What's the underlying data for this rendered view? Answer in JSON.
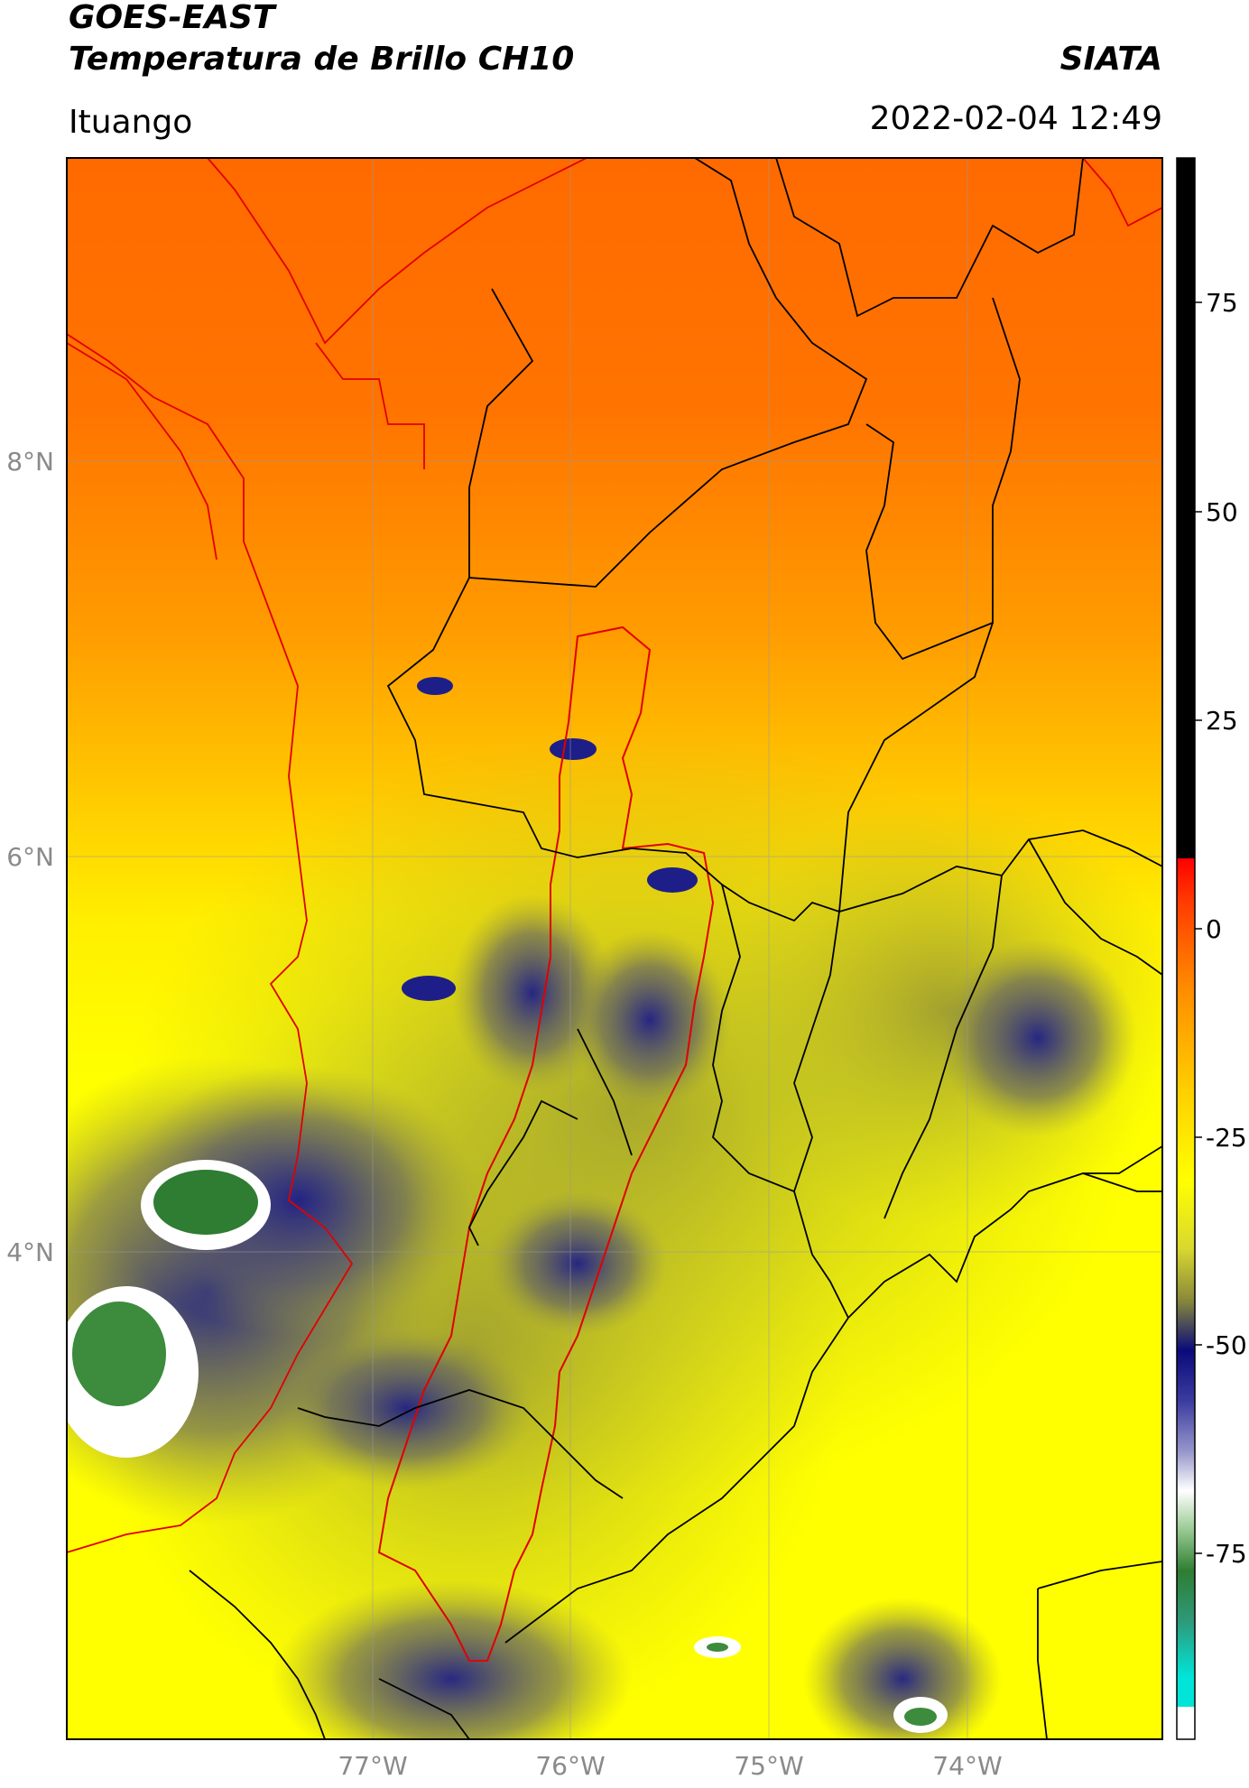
{
  "header": {
    "title_line1": "GOES-EAST",
    "title_line2": "Temperatura de Brillo CH10",
    "brand": "SIATA",
    "location": "Ituango",
    "timestamp": "2022-02-04 12:49"
  },
  "map": {
    "lat_labels": [
      "8°N",
      "6°N",
      "4°N"
    ],
    "lon_labels": [
      "77°W",
      "76°W",
      "75°W",
      "74°W"
    ]
  },
  "colorbar": {
    "tick_labels": [
      "75",
      "50",
      "25",
      "0",
      "-25",
      "-50",
      "-75"
    ],
    "colors": {
      "black": "#000000",
      "red": "#ff0000",
      "orange": "#ff7a00",
      "yellow": "#ffff00",
      "olive": "#8a8a3a",
      "navy": "#0a0a7a",
      "white": "#ffffff",
      "green": "#2e7d32",
      "cyan": "#00e5d8"
    }
  }
}
